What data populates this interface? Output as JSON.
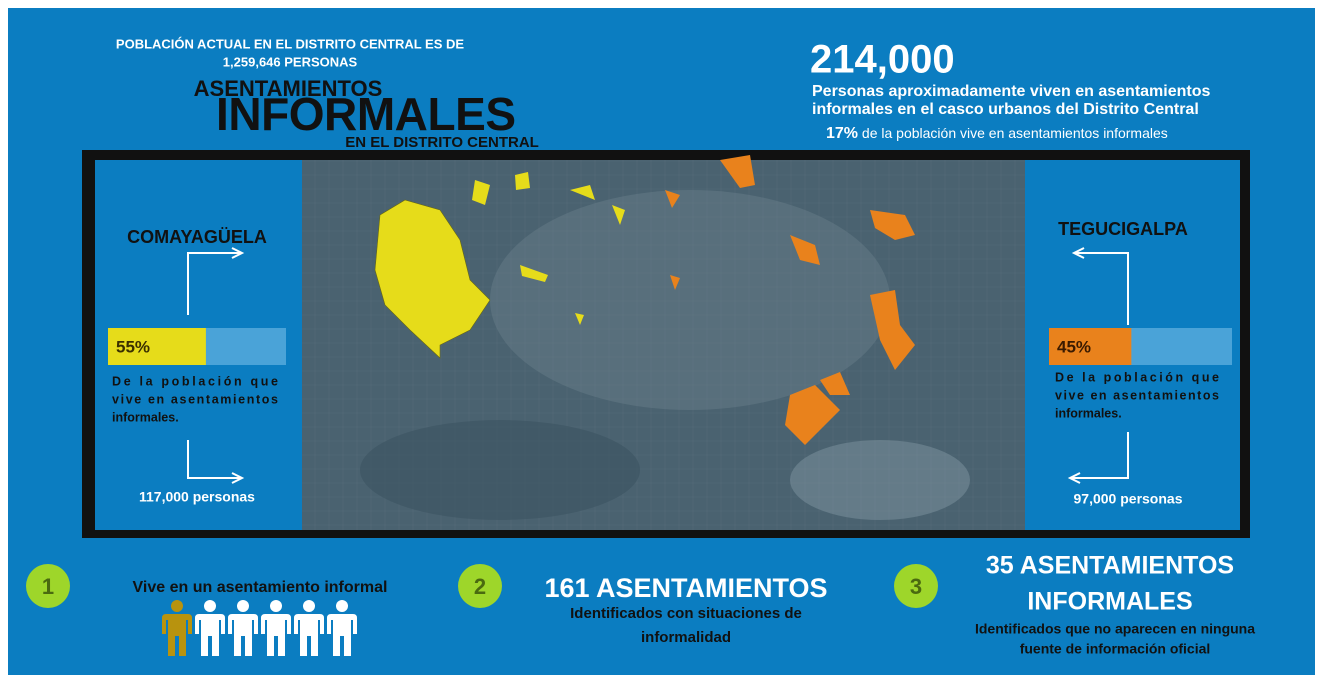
{
  "header": {
    "population_lines": [
      "POBLACIÓN ACTUAL EN EL DISTRITO CENTRAL ES DE",
      "1,259,646 PERSONAS"
    ],
    "title_top": "ASENTAMIENTOS",
    "title_main": "INFORMALES",
    "title_bottom": "EN EL DISTRITO CENTRAL"
  },
  "summary": {
    "total": "214,000",
    "description_lines": [
      "Personas aproximadamente viven en asentamientos",
      "informales en el casco urbanos del Distrito Central"
    ],
    "share": "17%",
    "share_text": " de la población vive en asentamientos informales"
  },
  "left_panel": {
    "name": "COMAYAGÜELA",
    "percent": {
      "value": 55,
      "label": "55%"
    },
    "description_lines": [
      "De la población que",
      "vive en asentamientos",
      "informales."
    ],
    "people": "117,000 personas"
  },
  "right_panel": {
    "name": "TEGUCIGALPA",
    "percent": {
      "value": 45,
      "label": "45%"
    },
    "description_lines": [
      "De la población que",
      "vive en asentamientos",
      "informales."
    ],
    "people": "97,000 personas"
  },
  "facts": [
    {
      "number": "1",
      "lines": [
        "Vive en un asentamiento informal"
      ]
    },
    {
      "number": "2",
      "heading_lines": [
        "161 ASENTAMIENTOS"
      ],
      "lines": [
        "Identificados con situaciones de",
        "informalidad"
      ]
    },
    {
      "number": "3",
      "heading_lines": [
        "35 ASENTAMIENTOS",
        "INFORMALES"
      ],
      "lines": [
        "Identificados que no aparecen en ninguna",
        "fuente de información oficial"
      ]
    }
  ]
}
